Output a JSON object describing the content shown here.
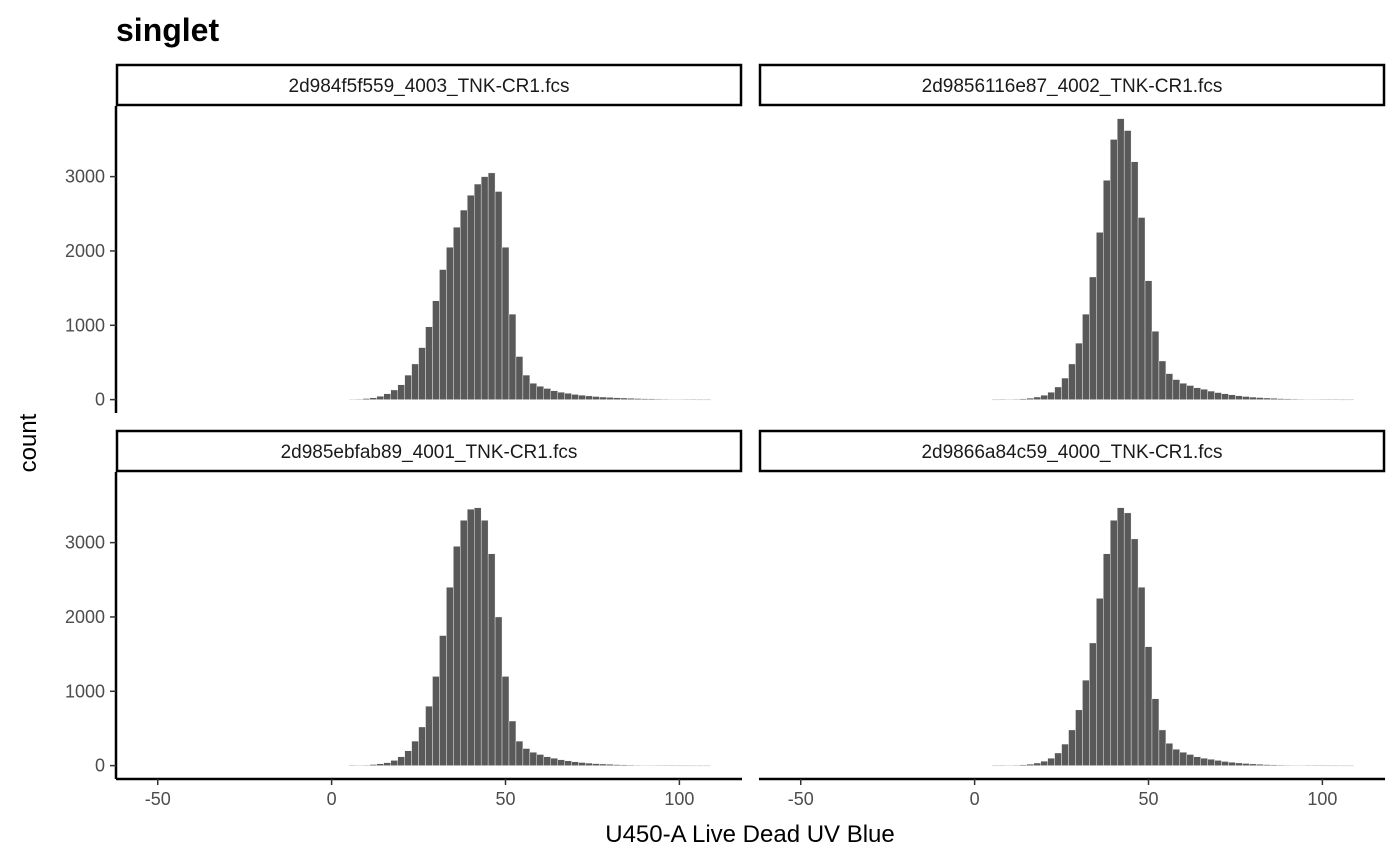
{
  "chart_data": {
    "type": "bar",
    "chart_kind": "histogram (faceted 2x2)",
    "title": "singlet",
    "xlabel": "U450-A Live Dead UV Blue",
    "ylabel": "count",
    "xlim": [
      -62,
      118
    ],
    "ylim": [
      -180,
      3950
    ],
    "x_ticks": [
      -50,
      0,
      50,
      100
    ],
    "x_tick_labels": [
      "-50",
      "0",
      "50",
      "100"
    ],
    "y_ticks": [
      0,
      1000,
      2000,
      3000
    ],
    "y_tick_labels": [
      "0",
      "1000",
      "2000",
      "3000"
    ],
    "bar_color": "#595959",
    "bin_width": 2,
    "bin_centers": [
      6,
      8,
      10,
      12,
      14,
      16,
      18,
      20,
      22,
      24,
      26,
      28,
      30,
      32,
      34,
      36,
      38,
      40,
      42,
      44,
      46,
      48,
      50,
      52,
      54,
      56,
      58,
      60,
      62,
      64,
      66,
      68,
      70,
      72,
      74,
      76,
      78,
      80,
      82,
      84,
      86,
      88,
      90,
      92,
      94,
      96,
      98,
      100,
      102,
      104,
      106,
      108
    ],
    "facets": [
      {
        "label": "2d984f5f559_4003_TNK-CR1.fcs",
        "counts": [
          5,
          8,
          15,
          25,
          45,
          80,
          130,
          200,
          330,
          480,
          700,
          980,
          1330,
          1750,
          2050,
          2320,
          2550,
          2750,
          2900,
          3000,
          3050,
          2800,
          2050,
          1150,
          580,
          330,
          220,
          180,
          150,
          120,
          100,
          85,
          70,
          60,
          50,
          42,
          35,
          30,
          26,
          22,
          18,
          15,
          13,
          11,
          9,
          8,
          6,
          5,
          4,
          3,
          2,
          2
        ]
      },
      {
        "label": "2d9856116e87_4002_TNK-CR1.fcs",
        "counts": [
          2,
          3,
          5,
          8,
          12,
          20,
          35,
          60,
          100,
          170,
          290,
          480,
          760,
          1150,
          1650,
          2250,
          2950,
          3500,
          3780,
          3620,
          3200,
          2450,
          1600,
          920,
          520,
          350,
          270,
          220,
          190,
          160,
          140,
          115,
          95,
          80,
          65,
          52,
          42,
          34,
          28,
          22,
          18,
          14,
          11,
          9,
          7,
          6,
          5,
          4,
          3,
          3,
          2,
          2
        ]
      },
      {
        "label": "2d985ebfab89_4001_TNK-CR1.fcs",
        "counts": [
          3,
          5,
          8,
          15,
          25,
          40,
          70,
          120,
          200,
          330,
          520,
          800,
          1200,
          1750,
          2400,
          2950,
          3300,
          3450,
          3470,
          3300,
          2850,
          2000,
          1200,
          600,
          330,
          230,
          180,
          150,
          120,
          100,
          80,
          65,
          52,
          42,
          34,
          27,
          22,
          18,
          14,
          11,
          9,
          7,
          6,
          5,
          4,
          3,
          3,
          2,
          2,
          1,
          1,
          1
        ]
      },
      {
        "label": "2d9866a84c59_4000_TNK-CR1.fcs",
        "counts": [
          2,
          3,
          5,
          8,
          12,
          20,
          35,
          60,
          100,
          170,
          290,
          480,
          750,
          1150,
          1650,
          2250,
          2850,
          3300,
          3470,
          3400,
          3050,
          2400,
          1600,
          900,
          480,
          300,
          220,
          180,
          150,
          120,
          100,
          85,
          70,
          56,
          45,
          36,
          29,
          23,
          18,
          14,
          11,
          9,
          7,
          6,
          5,
          4,
          3,
          3,
          2,
          2,
          1,
          1
        ]
      }
    ]
  }
}
